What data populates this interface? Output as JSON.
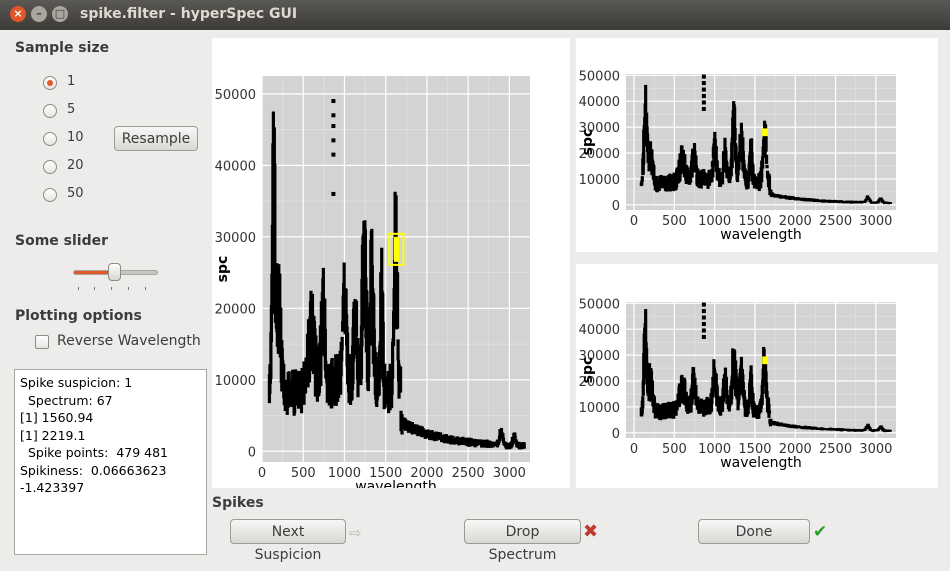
{
  "window": {
    "title": "spike.filter - hyperSpec GUI",
    "close_glyph": "×",
    "min_glyph": "–",
    "max_glyph": "□"
  },
  "sample_size": {
    "label": "Sample size",
    "options": [
      "1",
      "5",
      "10",
      "20",
      "50"
    ],
    "selected": "1",
    "resample_label": "Resample"
  },
  "slider": {
    "label": "Some slider",
    "value_fraction": 0.5
  },
  "plotting_options": {
    "label": "Plotting options",
    "reverse_label": "Reverse Wavelength",
    "reverse_checked": false
  },
  "info_text": "Spike suspicion: 1\n  Spectrum: 67\n[1] 1560.94\n[1] 2219.1\n  Spike points:  479 481\nSpikiness:  0.06663623\n-1.423397",
  "spikes": {
    "label": "Spikes",
    "next_label": "Next Suspicion",
    "drop_label": "Drop Spectrum",
    "done_label": "Done",
    "next_icon": "arrow-right-icon",
    "drop_icon": "red-x-icon",
    "done_icon": "green-check-icon"
  },
  "colors": {
    "panel_bg": "#d3d3d3",
    "spectrum": "#000000",
    "highlight": "#ffff00",
    "accent": "#e0572a"
  },
  "chart_data": [
    {
      "type": "scatter",
      "title": "",
      "xlabel": "wavelength",
      "ylabel": "spc",
      "xlim": [
        0,
        3250
      ],
      "ylim": [
        -1500,
        52500
      ],
      "xticks": [
        0,
        500,
        1000,
        1500,
        2000,
        2500,
        3000
      ],
      "xtick_labels": [
        "0",
        "500",
        "1000",
        "1500",
        "2000",
        "2500",
        "3000"
      ],
      "yticks": [
        0,
        10000,
        20000,
        30000,
        40000,
        50000
      ],
      "ytick_labels": [
        "0",
        "10000",
        "20000",
        "30000",
        "40000",
        "50000"
      ],
      "grid": true,
      "spike_points": [
        [
          866,
          49000
        ],
        [
          866,
          47000
        ],
        [
          866,
          45500
        ],
        [
          866,
          43500
        ],
        [
          866,
          41500
        ],
        [
          866,
          36000
        ]
      ],
      "highlight_region": {
        "x": [
          1580,
          1680
        ],
        "y": [
          26500,
          30000
        ]
      }
    },
    {
      "type": "scatter",
      "title": "",
      "xlabel": "wavelength",
      "ylabel": "spc",
      "xlim": [
        -100,
        3250
      ],
      "ylim": [
        -2000,
        50500
      ],
      "xticks": [
        0,
        500,
        1000,
        1500,
        2000,
        2500,
        3000
      ],
      "xtick_labels": [
        "0",
        "500",
        "1000",
        "1500",
        "2000",
        "2500",
        "3000"
      ],
      "yticks": [
        0,
        10000,
        20000,
        30000,
        40000,
        50000
      ],
      "ytick_labels": [
        "0",
        "10000",
        "20000",
        "30000",
        "40000",
        "50000"
      ],
      "grid": true,
      "spike_points": [
        [
          866,
          49500
        ],
        [
          866,
          47000
        ],
        [
          866,
          44500
        ],
        [
          866,
          42000
        ],
        [
          866,
          39500
        ],
        [
          866,
          37000
        ]
      ],
      "highlight_region": {
        "x": [
          1590,
          1660
        ],
        "y": [
          26500,
          29500
        ]
      }
    },
    {
      "type": "scatter",
      "title": "",
      "xlabel": "wavelength",
      "ylabel": "spc",
      "xlim": [
        -100,
        3250
      ],
      "ylim": [
        -2000,
        50500
      ],
      "xticks": [
        0,
        500,
        1000,
        1500,
        2000,
        2500,
        3000
      ],
      "xtick_labels": [
        "0",
        "500",
        "1000",
        "1500",
        "2000",
        "2500",
        "3000"
      ],
      "yticks": [
        0,
        10000,
        20000,
        30000,
        40000,
        50000
      ],
      "ytick_labels": [
        "0",
        "10000",
        "20000",
        "30000",
        "40000",
        "50000"
      ],
      "grid": true,
      "spike_points": [
        [
          866,
          49500
        ],
        [
          866,
          47000
        ],
        [
          866,
          44500
        ],
        [
          866,
          42000
        ],
        [
          866,
          39500
        ],
        [
          866,
          37000
        ]
      ],
      "highlight_region": {
        "x": [
          1590,
          1660
        ],
        "y": [
          26500,
          29500
        ]
      }
    }
  ]
}
